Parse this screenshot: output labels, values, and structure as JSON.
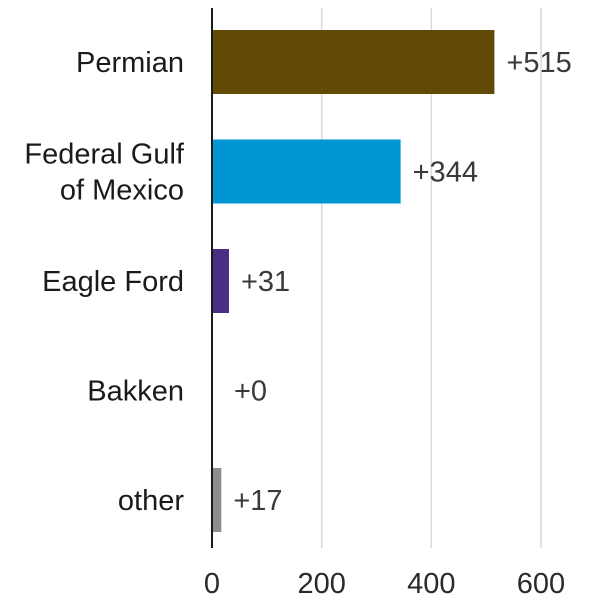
{
  "chart_data": {
    "type": "bar",
    "orientation": "horizontal",
    "title": "",
    "xlabel": "",
    "ylabel": "",
    "categories": [
      "Permian",
      "Federal Gulf of Mexico",
      "Eagle Ford",
      "Bakken",
      "other"
    ],
    "category_lines": [
      [
        "Permian"
      ],
      [
        "Federal Gulf",
        "of Mexico"
      ],
      [
        "Eagle Ford"
      ],
      [
        "Bakken"
      ],
      [
        "other"
      ]
    ],
    "values": [
      515,
      344,
      31,
      0,
      17
    ],
    "value_labels": [
      "+515",
      "+344",
      "+31",
      "+0",
      "+17"
    ],
    "bar_colors": [
      "#614a06",
      "#0096d6",
      "#4b2e83",
      "#4b2e83",
      "#8c8c8c"
    ],
    "xlim": [
      0,
      600
    ],
    "xticks": [
      0,
      200,
      400,
      600
    ],
    "tick_labels": [
      "0",
      "200",
      "400",
      "600"
    ],
    "grid": true,
    "gridline_color": "#d9d9d9",
    "axis_color": "#1a1a1a"
  }
}
